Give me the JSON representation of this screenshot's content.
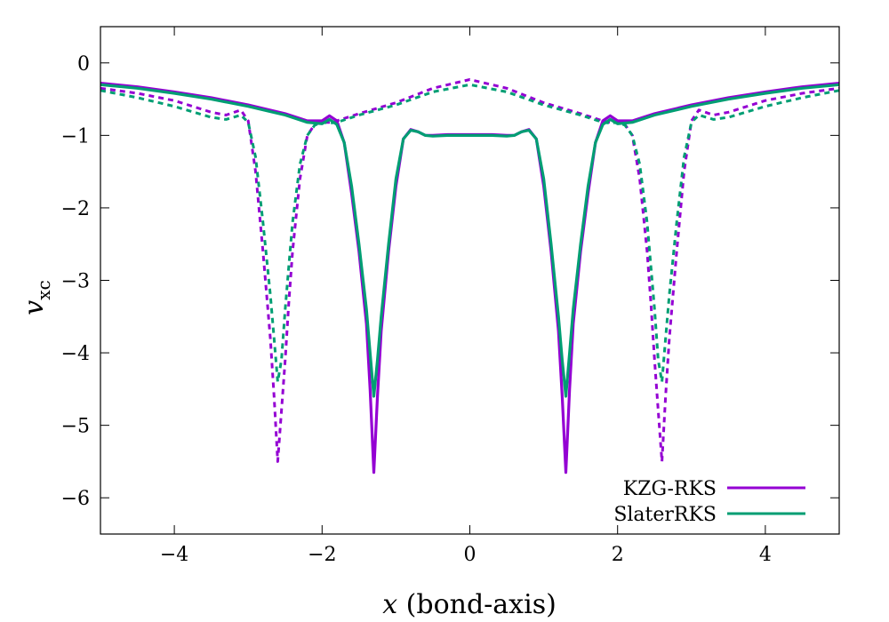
{
  "chart_data": {
    "type": "line",
    "xlabel_var": "x",
    "xlabel_rest": " (bond-axis)",
    "ylabel_var": "v",
    "ylabel_sub": "xc",
    "xlim": [
      -5,
      5
    ],
    "ylim": [
      -6.5,
      0.5
    ],
    "xticks": [
      -4,
      -2,
      0,
      2,
      4
    ],
    "yticks": [
      0,
      -1,
      -2,
      -3,
      -4,
      -5,
      -6
    ],
    "grid": false,
    "legend_position": "bottom-right",
    "series": [
      {
        "name": "KZG-RKS",
        "color": "#9400d3",
        "style": "solid",
        "x": [
          -5,
          -4.5,
          -4,
          -3.5,
          -3,
          -2.5,
          -2.2,
          -2,
          -1.9,
          -1.8,
          -1.7,
          -1.6,
          -1.5,
          -1.4,
          -1.35,
          -1.3,
          -1.25,
          -1.2,
          -1.1,
          -1,
          -0.9,
          -0.8,
          -0.7,
          -0.6,
          -0.5,
          -0.3,
          0,
          0.3,
          0.5,
          0.6,
          0.7,
          0.8,
          0.9,
          1,
          1.1,
          1.2,
          1.25,
          1.3,
          1.35,
          1.4,
          1.5,
          1.6,
          1.7,
          1.8,
          1.9,
          2,
          2.2,
          2.5,
          3,
          3.5,
          4,
          4.5,
          5
        ],
        "y": [
          -0.28,
          -0.33,
          -0.4,
          -0.48,
          -0.58,
          -0.7,
          -0.8,
          -0.8,
          -0.73,
          -0.8,
          -1.1,
          -1.8,
          -2.6,
          -3.6,
          -4.5,
          -5.65,
          -4.6,
          -3.7,
          -2.6,
          -1.7,
          -1.05,
          -0.92,
          -0.95,
          -1.0,
          -1.0,
          -0.99,
          -0.99,
          -0.99,
          -1.0,
          -1.0,
          -0.95,
          -0.92,
          -1.05,
          -1.7,
          -2.6,
          -3.7,
          -4.6,
          -5.65,
          -4.5,
          -3.6,
          -2.6,
          -1.8,
          -1.1,
          -0.8,
          -0.73,
          -0.8,
          -0.8,
          -0.7,
          -0.58,
          -0.48,
          -0.4,
          -0.33,
          -0.28
        ]
      },
      {
        "name": "SlaterRKS",
        "color": "#009e73",
        "style": "solid",
        "x": [
          -5,
          -4.5,
          -4,
          -3.5,
          -3,
          -2.5,
          -2.2,
          -2,
          -1.9,
          -1.8,
          -1.7,
          -1.6,
          -1.5,
          -1.4,
          -1.35,
          -1.3,
          -1.25,
          -1.2,
          -1.1,
          -1,
          -0.9,
          -0.8,
          -0.7,
          -0.6,
          -0.5,
          -0.3,
          0,
          0.3,
          0.5,
          0.6,
          0.7,
          0.8,
          0.9,
          1,
          1.1,
          1.2,
          1.25,
          1.3,
          1.35,
          1.4,
          1.5,
          1.6,
          1.7,
          1.8,
          1.9,
          2,
          2.2,
          2.5,
          3,
          3.5,
          4,
          4.5,
          5
        ],
        "y": [
          -0.3,
          -0.35,
          -0.42,
          -0.5,
          -0.6,
          -0.72,
          -0.82,
          -0.84,
          -0.78,
          -0.85,
          -1.1,
          -1.7,
          -2.5,
          -3.4,
          -4.0,
          -4.6,
          -4.1,
          -3.5,
          -2.5,
          -1.6,
          -1.05,
          -0.93,
          -0.95,
          -1.0,
          -1.01,
          -1.0,
          -1.0,
          -1.0,
          -1.01,
          -1.0,
          -0.95,
          -0.93,
          -1.05,
          -1.6,
          -2.5,
          -3.5,
          -4.1,
          -4.6,
          -4.0,
          -3.4,
          -2.5,
          -1.7,
          -1.1,
          -0.85,
          -0.78,
          -0.84,
          -0.82,
          -0.72,
          -0.6,
          -0.5,
          -0.42,
          -0.35,
          -0.3
        ]
      },
      {
        "color": "#9400d3",
        "style": "dashed",
        "x": [
          -5,
          -4.5,
          -4,
          -3.5,
          -3.3,
          -3.1,
          -3.0,
          -2.9,
          -2.8,
          -2.7,
          -2.65,
          -2.6,
          -2.55,
          -2.5,
          -2.45,
          -2.4,
          -2.3,
          -2.2,
          -2.1,
          -2.0,
          -1.9,
          -1.8,
          -1.5,
          -1.0,
          -0.5,
          0,
          0.5,
          1.0,
          1.5,
          1.8,
          1.9,
          2.0,
          2.1,
          2.2,
          2.3,
          2.4,
          2.45,
          2.5,
          2.55,
          2.6,
          2.65,
          2.7,
          2.8,
          2.9,
          3.0,
          3.1,
          3.3,
          3.5,
          4,
          4.5,
          5
        ],
        "y": [
          -0.35,
          -0.42,
          -0.52,
          -0.68,
          -0.72,
          -0.65,
          -0.8,
          -1.5,
          -2.6,
          -3.8,
          -4.6,
          -5.5,
          -4.8,
          -4.1,
          -3.3,
          -2.6,
          -1.6,
          -1.0,
          -0.85,
          -0.82,
          -0.82,
          -0.8,
          -0.7,
          -0.55,
          -0.35,
          -0.23,
          -0.35,
          -0.55,
          -0.7,
          -0.8,
          -0.82,
          -0.82,
          -0.85,
          -1.0,
          -1.6,
          -2.6,
          -3.3,
          -4.1,
          -4.8,
          -5.5,
          -4.6,
          -3.8,
          -2.6,
          -1.5,
          -0.8,
          -0.65,
          -0.72,
          -0.68,
          -0.52,
          -0.42,
          -0.35
        ]
      },
      {
        "color": "#009e73",
        "style": "dashed",
        "x": [
          -5,
          -4.5,
          -4,
          -3.5,
          -3.3,
          -3.1,
          -3.0,
          -2.9,
          -2.8,
          -2.7,
          -2.65,
          -2.6,
          -2.55,
          -2.5,
          -2.45,
          -2.4,
          -2.3,
          -2.2,
          -2.1,
          -2.0,
          -1.9,
          -1.8,
          -1.5,
          -1.0,
          -0.5,
          0,
          0.5,
          1.0,
          1.5,
          1.8,
          1.9,
          2.0,
          2.1,
          2.2,
          2.3,
          2.4,
          2.45,
          2.5,
          2.55,
          2.6,
          2.65,
          2.7,
          2.8,
          2.9,
          3.0,
          3.1,
          3.3,
          3.5,
          4,
          4.5,
          5
        ],
        "y": [
          -0.38,
          -0.48,
          -0.6,
          -0.75,
          -0.78,
          -0.72,
          -0.82,
          -1.3,
          -2.2,
          -3.2,
          -3.8,
          -4.4,
          -4.1,
          -3.4,
          -2.8,
          -2.2,
          -1.4,
          -1.0,
          -0.86,
          -0.82,
          -0.83,
          -0.82,
          -0.72,
          -0.58,
          -0.4,
          -0.3,
          -0.4,
          -0.58,
          -0.72,
          -0.82,
          -0.83,
          -0.82,
          -0.86,
          -1.0,
          -1.4,
          -2.2,
          -2.8,
          -3.4,
          -4.1,
          -4.4,
          -3.8,
          -3.2,
          -2.2,
          -1.3,
          -0.82,
          -0.72,
          -0.78,
          -0.75,
          -0.6,
          -0.48,
          -0.38
        ]
      }
    ]
  }
}
